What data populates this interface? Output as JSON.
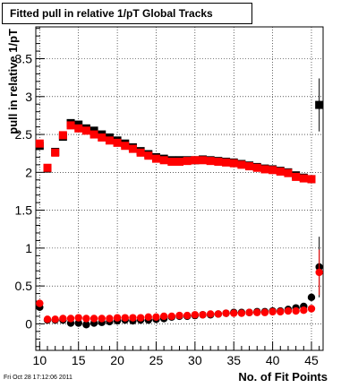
{
  "title": "Fitted pull in relative 1/pT  Global Tracks",
  "datestamp": "Fri Oct 28 17:12:06 2011",
  "colors": {
    "series_black": "#000000",
    "series_red": "#ff0000",
    "grid": "#000000",
    "background": "#ffffff"
  },
  "chart_data": {
    "type": "scatter",
    "title": "Fitted pull in relative 1/pT  Global Tracks",
    "xlabel": "No. of Fit Points",
    "ylabel": "pull in relative 1/pT",
    "xlim": [
      9.5,
      46.5
    ],
    "ylim": [
      -0.35,
      3.92
    ],
    "grid": true,
    "x_ticks": [
      10,
      15,
      20,
      25,
      30,
      35,
      40,
      45
    ],
    "y_ticks": [
      0,
      0.5,
      1,
      1.5,
      2,
      2.5,
      3,
      3.5
    ],
    "x_tick_labels": [
      "10",
      "15",
      "20",
      "25",
      "30",
      "35",
      "40",
      "45"
    ],
    "y_tick_labels": [
      "0",
      "0.5",
      "1",
      "1.5",
      "2",
      "2.5",
      "3",
      "3.5"
    ],
    "x": [
      10,
      11,
      12,
      13,
      14,
      15,
      16,
      17,
      18,
      19,
      20,
      21,
      22,
      23,
      24,
      25,
      26,
      27,
      28,
      29,
      30,
      31,
      32,
      33,
      34,
      35,
      36,
      37,
      38,
      39,
      40,
      41,
      42,
      43,
      44,
      45,
      46
    ],
    "series": [
      {
        "marker": "square",
        "color": "#000000",
        "values": [
          2.35,
          2.05,
          2.27,
          2.47,
          2.65,
          2.63,
          2.58,
          2.55,
          2.5,
          2.46,
          2.42,
          2.38,
          2.33,
          2.28,
          2.24,
          2.2,
          2.18,
          2.16,
          2.16,
          2.16,
          2.16,
          2.17,
          2.16,
          2.15,
          2.14,
          2.13,
          2.11,
          2.09,
          2.07,
          2.05,
          2.04,
          2.02,
          2.0,
          1.96,
          1.93,
          1.91,
          2.89
        ],
        "errors": [
          0.04,
          0.03,
          0.03,
          0.02,
          0.02,
          0.02,
          0.02,
          0.02,
          0.02,
          0.02,
          0.02,
          0.02,
          0.02,
          0.02,
          0.02,
          0.02,
          0.02,
          0.02,
          0.02,
          0.02,
          0.02,
          0.02,
          0.02,
          0.02,
          0.02,
          0.02,
          0.02,
          0.02,
          0.02,
          0.02,
          0.02,
          0.02,
          0.02,
          0.02,
          0.03,
          0.04,
          0.35
        ]
      },
      {
        "marker": "square",
        "color": "#ff0000",
        "values": [
          2.38,
          2.06,
          2.26,
          2.49,
          2.62,
          2.58,
          2.55,
          2.5,
          2.46,
          2.42,
          2.39,
          2.35,
          2.31,
          2.26,
          2.22,
          2.18,
          2.16,
          2.14,
          2.14,
          2.15,
          2.16,
          2.16,
          2.15,
          2.14,
          2.13,
          2.12,
          2.1,
          2.08,
          2.06,
          2.04,
          2.03,
          2.01,
          1.99,
          1.94,
          1.92,
          1.91,
          null
        ],
        "errors": [
          0.04,
          0.03,
          0.03,
          0.02,
          0.02,
          0.02,
          0.02,
          0.02,
          0.02,
          0.02,
          0.02,
          0.02,
          0.02,
          0.02,
          0.02,
          0.02,
          0.02,
          0.02,
          0.02,
          0.02,
          0.02,
          0.02,
          0.02,
          0.02,
          0.02,
          0.02,
          0.02,
          0.02,
          0.02,
          0.02,
          0.02,
          0.02,
          0.02,
          0.02,
          0.03,
          0.04,
          0
        ]
      },
      {
        "marker": "circle",
        "color": "#000000",
        "values": [
          0.22,
          0.05,
          0.05,
          0.05,
          0.01,
          0.01,
          -0.01,
          0.01,
          0.02,
          0.03,
          0.04,
          0.05,
          0.04,
          0.05,
          0.05,
          0.06,
          0.07,
          0.09,
          0.1,
          0.1,
          0.11,
          0.12,
          0.12,
          0.13,
          0.14,
          0.15,
          0.15,
          0.15,
          0.16,
          0.16,
          0.17,
          0.17,
          0.19,
          0.21,
          0.23,
          0.35,
          0.75
        ],
        "errors": [
          0.03,
          0.02,
          0.02,
          0.02,
          0.02,
          0.02,
          0.02,
          0.02,
          0.02,
          0.02,
          0.02,
          0.02,
          0.02,
          0.02,
          0.02,
          0.02,
          0.02,
          0.02,
          0.02,
          0.02,
          0.02,
          0.02,
          0.02,
          0.02,
          0.02,
          0.02,
          0.02,
          0.02,
          0.02,
          0.02,
          0.02,
          0.02,
          0.02,
          0.02,
          0.03,
          0.04,
          0.4
        ]
      },
      {
        "marker": "circle",
        "color": "#ff0000",
        "values": [
          0.27,
          0.06,
          0.06,
          0.07,
          0.07,
          0.08,
          0.07,
          0.07,
          0.07,
          0.07,
          0.08,
          0.08,
          0.08,
          0.08,
          0.09,
          0.09,
          0.1,
          0.1,
          0.11,
          0.11,
          0.12,
          0.12,
          0.13,
          0.13,
          0.14,
          0.14,
          0.14,
          0.15,
          0.15,
          0.15,
          0.16,
          0.16,
          0.17,
          0.17,
          0.18,
          0.2,
          0.68
        ],
        "errors": [
          0.03,
          0.02,
          0.02,
          0.02,
          0.02,
          0.02,
          0.02,
          0.02,
          0.02,
          0.02,
          0.02,
          0.02,
          0.02,
          0.02,
          0.02,
          0.02,
          0.02,
          0.02,
          0.02,
          0.02,
          0.02,
          0.02,
          0.02,
          0.02,
          0.02,
          0.02,
          0.02,
          0.02,
          0.02,
          0.02,
          0.02,
          0.02,
          0.02,
          0.02,
          0.03,
          0.04,
          0.3
        ]
      }
    ]
  }
}
